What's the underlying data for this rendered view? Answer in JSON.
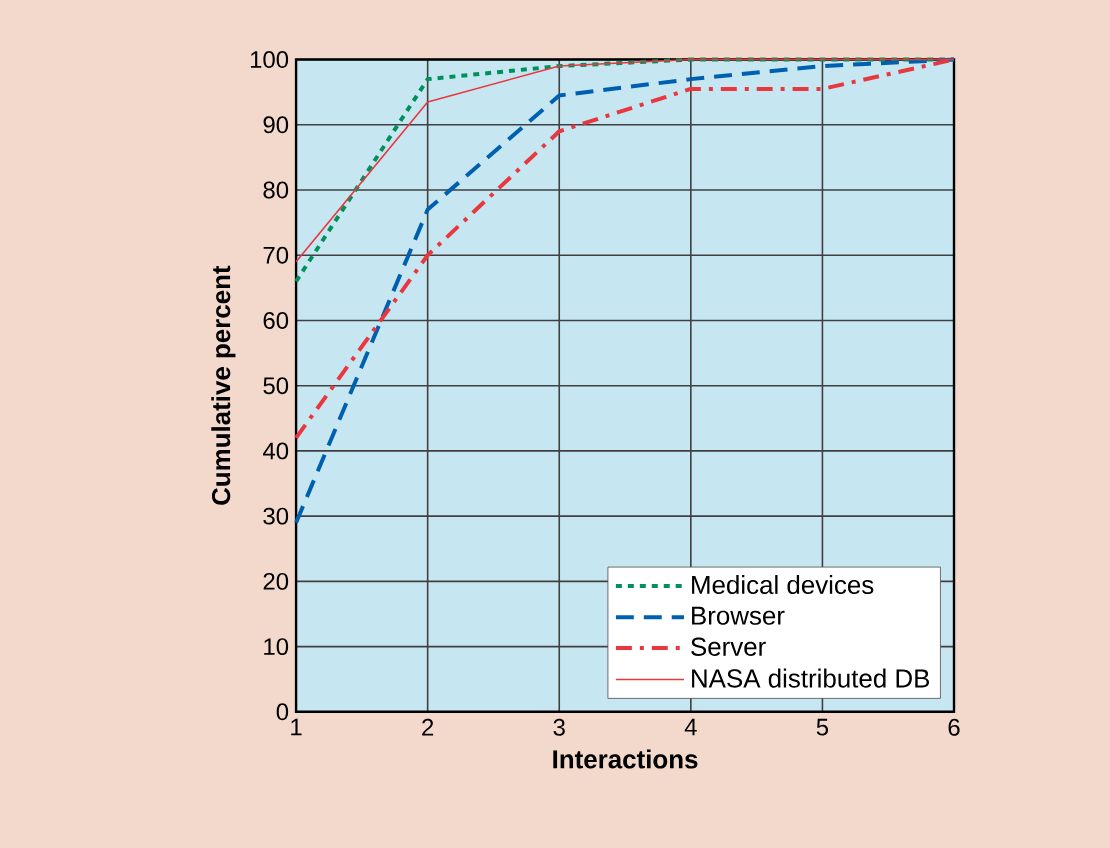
{
  "chart_data": {
    "type": "line",
    "xlabel": "Interactions",
    "ylabel": "Cumulative percent",
    "x": [
      1,
      2,
      3,
      4,
      5,
      6
    ],
    "xlim": [
      1,
      6
    ],
    "ylim": [
      0,
      100
    ],
    "xticks": [
      1,
      2,
      3,
      4,
      5,
      6
    ],
    "yticks": [
      0,
      10,
      20,
      30,
      40,
      50,
      60,
      70,
      80,
      90,
      100
    ],
    "grid": true,
    "legend": "bottom right",
    "marker": "none",
    "series": [
      {
        "name": "Medical devices",
        "color": "#00905a",
        "line_style": "dotted",
        "values": [
          66,
          97,
          99,
          100,
          100,
          100
        ]
      },
      {
        "name": "Browser",
        "color": "#0060b0",
        "line_style": "dashed",
        "values": [
          29,
          77,
          94.5,
          97,
          99,
          100
        ]
      },
      {
        "name": "Server",
        "color": "#e8383d",
        "line_style": "dashdot",
        "values": [
          42,
          70,
          89,
          95.5,
          95.5,
          100
        ]
      },
      {
        "name": "NASA distributed DB",
        "color": "#e8383d",
        "line_style": "solid",
        "values": [
          69,
          93.5,
          99,
          100,
          100,
          100
        ]
      }
    ]
  }
}
